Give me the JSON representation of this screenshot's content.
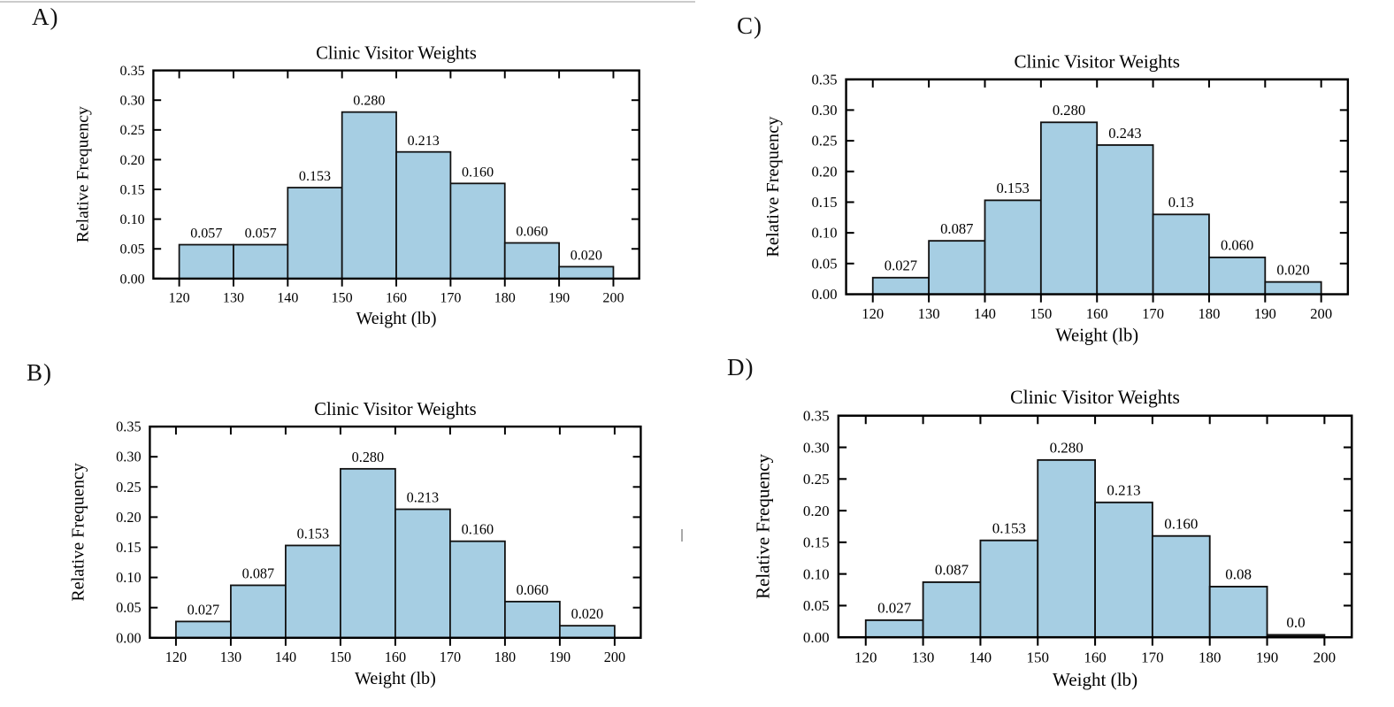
{
  "page": {
    "background": "#ffffff",
    "artifacts": {
      "top_rule_color": "#cbcbcb",
      "stray_mark_color": "#a9a9a9"
    }
  },
  "panels": [
    {
      "id": "A",
      "label": "A)"
    },
    {
      "id": "C",
      "label": "C)"
    },
    {
      "id": "B",
      "label": "B)"
    },
    {
      "id": "D",
      "label": "D)"
    }
  ],
  "chart_data": [
    {
      "panel": "A",
      "type": "bar",
      "title": "Clinic Visitor Weights",
      "xlabel": "Weight (lb)",
      "ylabel": "Relative Frequency",
      "bin_edges": [
        120,
        130,
        140,
        150,
        160,
        170,
        180,
        190,
        200
      ],
      "values": [
        0.057,
        0.057,
        0.153,
        0.28,
        0.213,
        0.16,
        0.06,
        0.02
      ],
      "bar_labels": [
        "0.057",
        "0.057",
        "0.153",
        "0.280",
        "0.213",
        "0.160",
        "0.060",
        "0.020"
      ],
      "ylim": [
        0,
        0.35
      ],
      "ytick_step": 0.05,
      "ytick_labels": [
        "0.00",
        "0.05",
        "0.10",
        "0.15",
        "0.20",
        "0.25",
        "0.30",
        "0.35"
      ],
      "xtick_labels": [
        "120",
        "130",
        "140",
        "150",
        "160",
        "170",
        "180",
        "190",
        "200"
      ],
      "bar_fill": "#a6cee3",
      "bar_edge": "#111111",
      "axis_color": "#000000",
      "grid": false,
      "legend": null
    },
    {
      "panel": "C",
      "type": "bar",
      "title": "Clinic Visitor Weights",
      "xlabel": "Weight (lb)",
      "ylabel": "Relative Frequency",
      "bin_edges": [
        120,
        130,
        140,
        150,
        160,
        170,
        180,
        190,
        200
      ],
      "values": [
        0.027,
        0.087,
        0.153,
        0.28,
        0.243,
        0.13,
        0.06,
        0.02
      ],
      "bar_labels": [
        "0.027",
        "0.087",
        "0.153",
        "0.280",
        "0.243",
        "0.13",
        "0.060",
        "0.020"
      ],
      "ylim": [
        0,
        0.35
      ],
      "ytick_step": 0.05,
      "ytick_labels": [
        "0.00",
        "0.05",
        "0.10",
        "0.15",
        "0.20",
        "0.25",
        "0.30",
        "0.35"
      ],
      "xtick_labels": [
        "120",
        "130",
        "140",
        "150",
        "160",
        "170",
        "180",
        "190",
        "200"
      ],
      "bar_fill": "#a6cee3",
      "bar_edge": "#111111",
      "axis_color": "#000000",
      "grid": false,
      "legend": null
    },
    {
      "panel": "B",
      "type": "bar",
      "title": "Clinic Visitor Weights",
      "xlabel": "Weight (lb)",
      "ylabel": "Relative Frequency",
      "bin_edges": [
        120,
        130,
        140,
        150,
        160,
        170,
        180,
        190,
        200
      ],
      "values": [
        0.027,
        0.087,
        0.153,
        0.28,
        0.213,
        0.16,
        0.06,
        0.02
      ],
      "bar_labels": [
        "0.027",
        "0.087",
        "0.153",
        "0.280",
        "0.213",
        "0.160",
        "0.060",
        "0.020"
      ],
      "ylim": [
        0,
        0.35
      ],
      "ytick_step": 0.05,
      "ytick_labels": [
        "0.00",
        "0.05",
        "0.10",
        "0.15",
        "0.20",
        "0.25",
        "0.30",
        "0.35"
      ],
      "xtick_labels": [
        "120",
        "130",
        "140",
        "150",
        "160",
        "170",
        "180",
        "190",
        "200"
      ],
      "bar_fill": "#a6cee3",
      "bar_edge": "#111111",
      "axis_color": "#000000",
      "grid": false,
      "legend": null
    },
    {
      "panel": "D",
      "type": "bar",
      "title": "Clinic Visitor Weights",
      "xlabel": "Weight (lb)",
      "ylabel": "Relative Frequency",
      "bin_edges": [
        120,
        130,
        140,
        150,
        160,
        170,
        180,
        190,
        200
      ],
      "values": [
        0.027,
        0.087,
        0.153,
        0.28,
        0.213,
        0.16,
        0.08,
        0.0
      ],
      "bar_labels": [
        "0.027",
        "0.087",
        "0.153",
        "0.280",
        "0.213",
        "0.160",
        "0.08",
        "0.0"
      ],
      "ylim": [
        0,
        0.35
      ],
      "ytick_step": 0.05,
      "ytick_labels": [
        "0.00",
        "0.05",
        "0.10",
        "0.15",
        "0.20",
        "0.25",
        "0.30",
        "0.35"
      ],
      "xtick_labels": [
        "120",
        "130",
        "140",
        "150",
        "160",
        "170",
        "180",
        "190",
        "200"
      ],
      "bar_fill": "#a6cee3",
      "bar_edge": "#111111",
      "axis_color": "#000000",
      "grid": false,
      "legend": null
    }
  ]
}
